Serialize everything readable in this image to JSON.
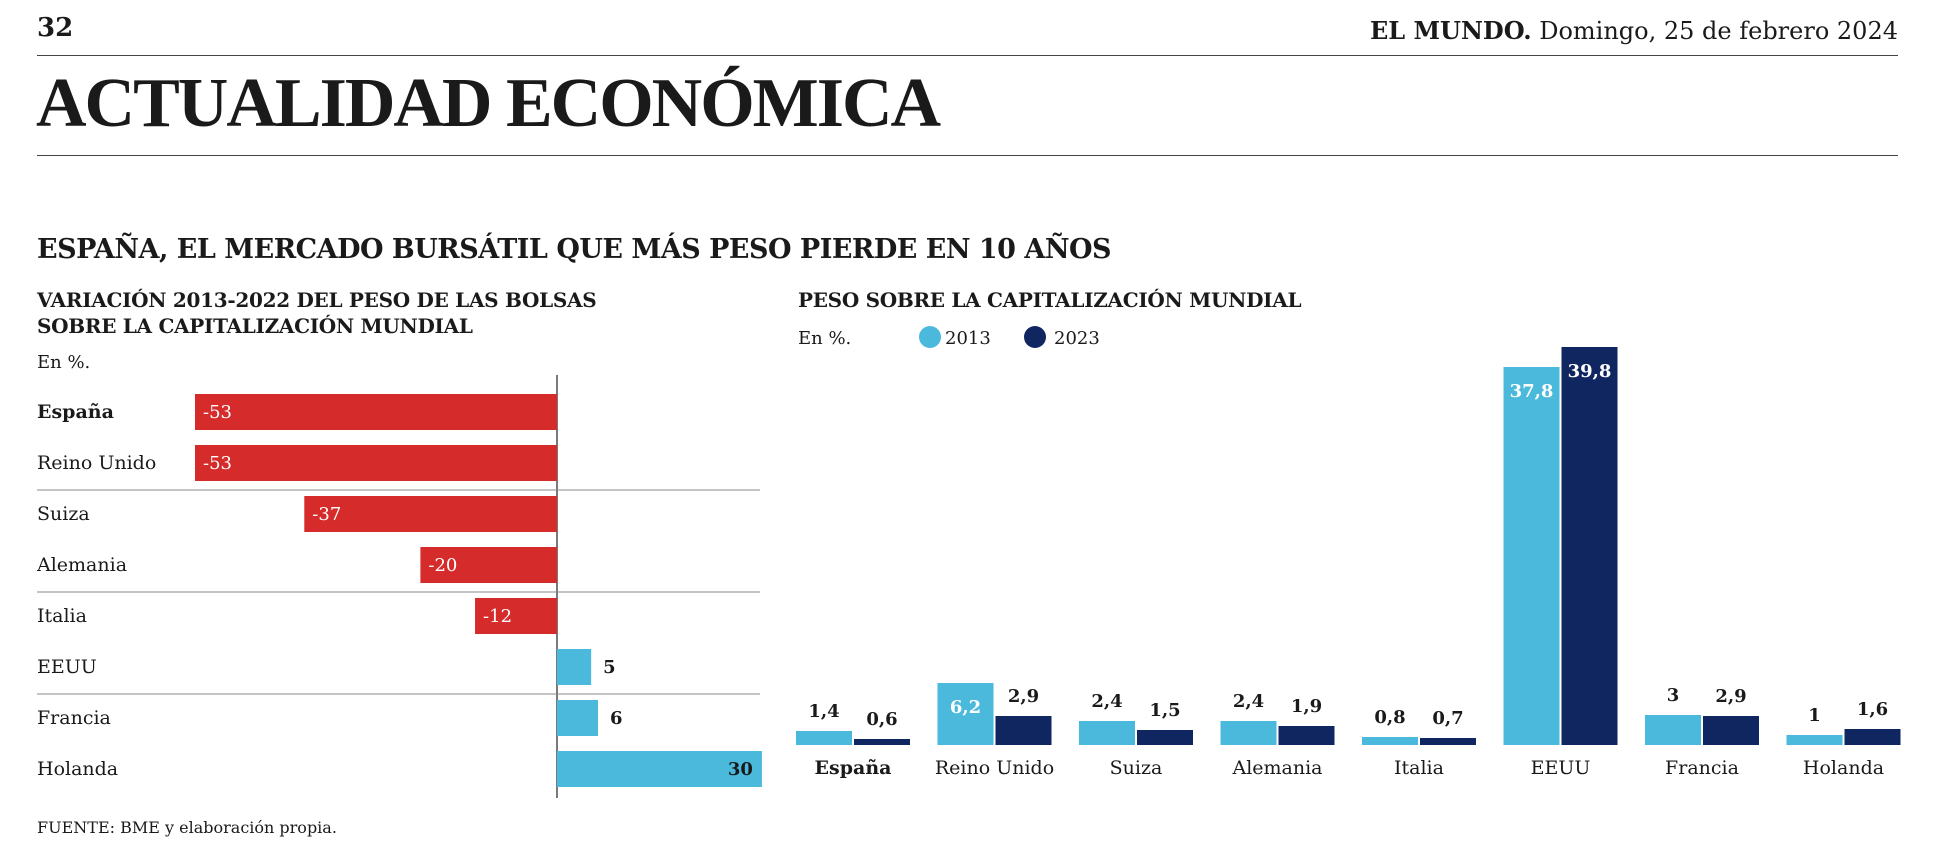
{
  "header": {
    "page_number": "32",
    "brand": "EL MUNDO.",
    "date": "Domingo, 25 de febrero 2024",
    "section": "ACTUALIDAD ECONÓMICA"
  },
  "headline": "ESPAÑA, EL MERCADO BURSÁTIL QUE MÁS PESO PIERDE EN 10 AÑOS",
  "source": "FUENTE: BME y elaboración propia.",
  "colors": {
    "red": "#d62b2b",
    "light_blue": "#4ab9dc",
    "dark_blue": "#0f2660"
  },
  "chart_data": [
    {
      "type": "bar",
      "orientation": "horizontal",
      "title": "VARIACIÓN 2013-2022  DEL PESO DE LAS BOLSAS",
      "title_line2": "SOBRE LA CAPITALIZACIÓN MUNDIAL",
      "unit": "En %.",
      "categories": [
        "España",
        "Reino Unido",
        "Suiza",
        "Alemania",
        "Italia",
        "EEUU",
        "Francia",
        "Holanda"
      ],
      "values": [
        -53,
        -53,
        -37,
        -20,
        -12,
        5,
        6,
        30
      ],
      "labels": [
        "-53",
        "-53",
        "-37",
        "-20",
        "-12",
        "5",
        "6",
        "30"
      ]
    },
    {
      "type": "bar",
      "orientation": "vertical",
      "title": "PESO SOBRE LA CAPITALIZACIÓN MUNDIAL",
      "unit": "En %.",
      "categories": [
        "España",
        "Reino Unido",
        "Suiza",
        "Alemania",
        "Italia",
        "EEUU",
        "Francia",
        "Holanda"
      ],
      "series": [
        {
          "name": "2013",
          "values": [
            1.4,
            6.2,
            2.4,
            2.4,
            0.8,
            37.8,
            3,
            1
          ],
          "labels": [
            "1,4",
            "6,2",
            "2,4",
            "2,4",
            "0,8",
            "37,8",
            "3",
            "1"
          ]
        },
        {
          "name": "2023",
          "values": [
            0.6,
            2.9,
            1.5,
            1.9,
            0.7,
            39.8,
            2.9,
            1.6
          ],
          "labels": [
            "0,6",
            "2,9",
            "1,5",
            "1,9",
            "0,7",
            "39,8",
            "2,9",
            "1,6"
          ]
        }
      ]
    }
  ]
}
